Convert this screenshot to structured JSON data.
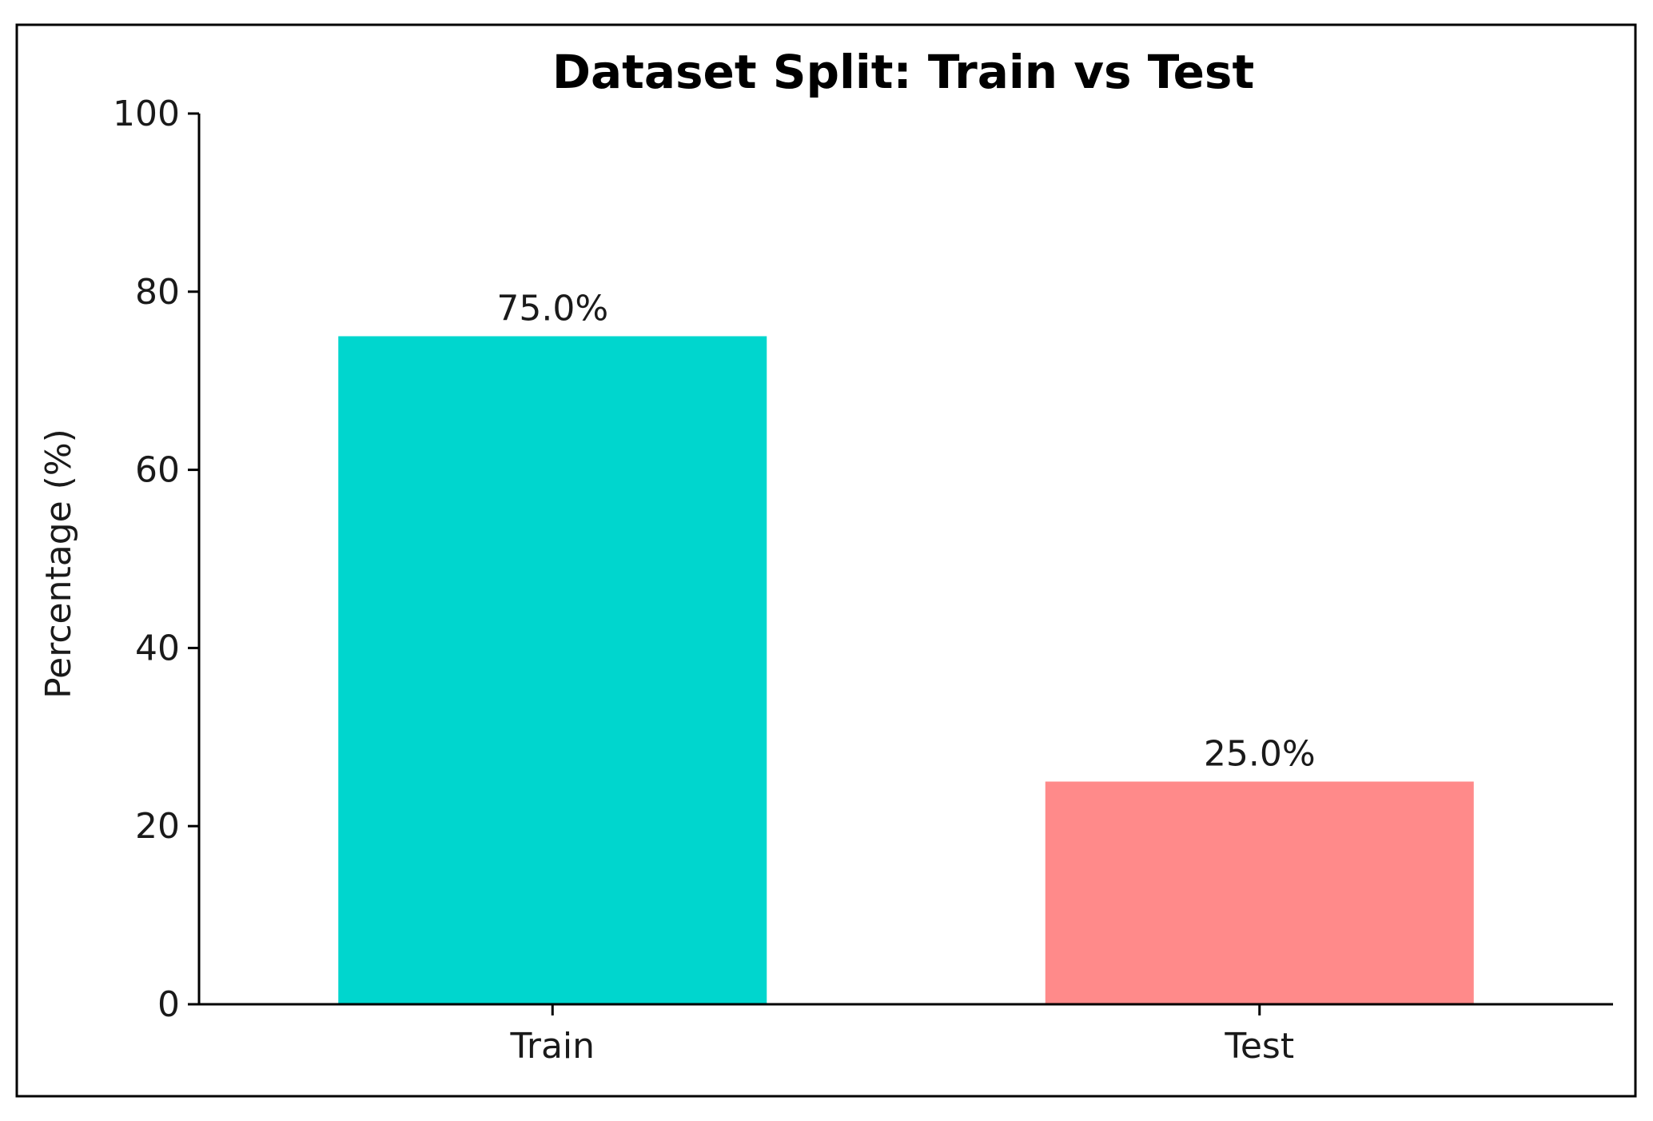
{
  "chart_data": {
    "type": "bar",
    "title": "Dataset Split: Train vs Test",
    "xlabel": "",
    "ylabel": "Percentage (%)",
    "ylim": [
      0,
      100
    ],
    "yticks": [
      0,
      20,
      40,
      60,
      80,
      100
    ],
    "categories": [
      "Train",
      "Test"
    ],
    "values": [
      75.0,
      25.0
    ],
    "data_labels": [
      "75.0%",
      "25.0%"
    ],
    "colors": [
      "#00d6ce",
      "#ff8a8a"
    ],
    "grid": false,
    "legend": "none"
  }
}
